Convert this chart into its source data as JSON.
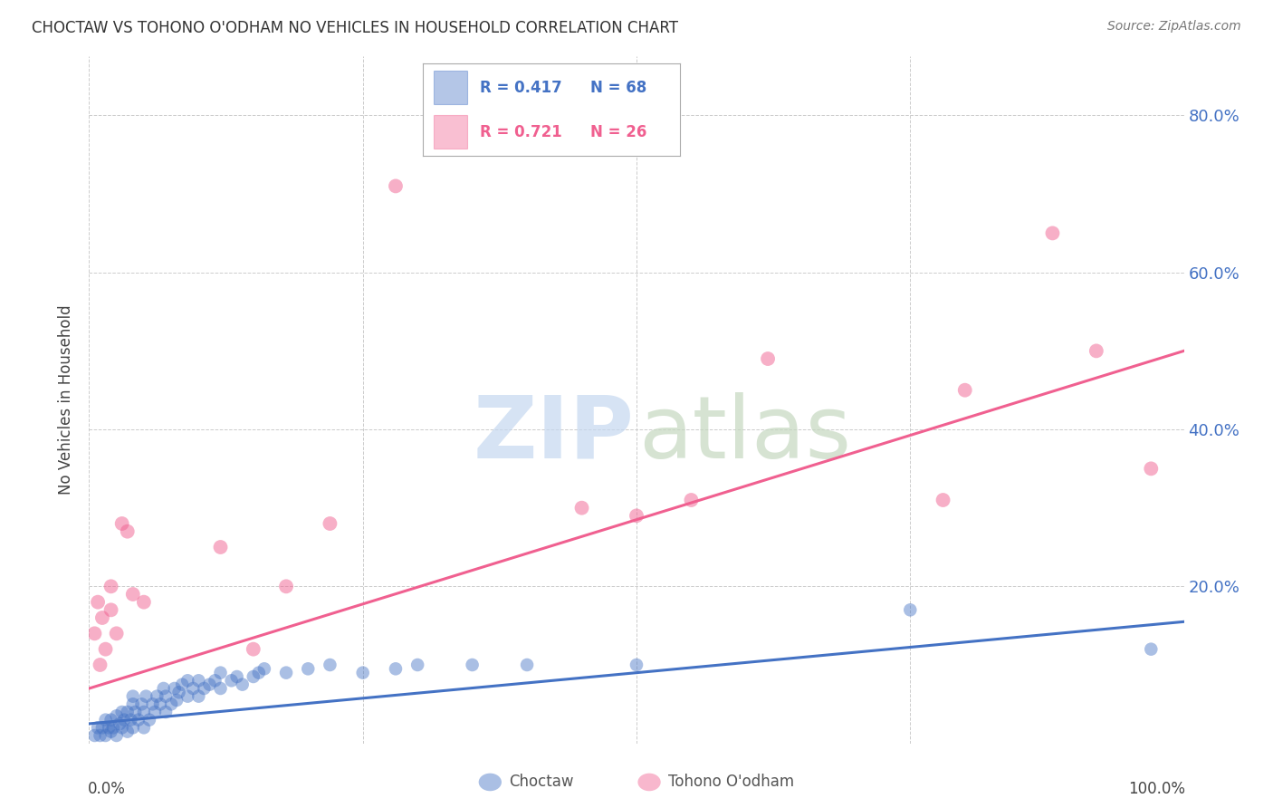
{
  "title": "CHOCTAW VS TOHONO O'ODHAM NO VEHICLES IN HOUSEHOLD CORRELATION CHART",
  "source": "Source: ZipAtlas.com",
  "ylabel": "No Vehicles in Household",
  "blue_color": "#4472c4",
  "pink_color": "#f06090",
  "bg_color": "#ffffff",
  "x_min": 0.0,
  "x_max": 1.0,
  "y_min": 0.0,
  "y_max": 0.875,
  "ytick_vals": [
    0.0,
    0.2,
    0.4,
    0.6,
    0.8
  ],
  "ytick_labels": [
    "",
    "20.0%",
    "40.0%",
    "60.0%",
    "80.0%"
  ],
  "blue_line_x": [
    0.0,
    1.0
  ],
  "blue_line_y": [
    0.025,
    0.155
  ],
  "pink_line_x": [
    0.0,
    1.0
  ],
  "pink_line_y": [
    0.07,
    0.5
  ],
  "choctaw_x": [
    0.005,
    0.008,
    0.01,
    0.012,
    0.015,
    0.015,
    0.018,
    0.02,
    0.02,
    0.022,
    0.025,
    0.025,
    0.028,
    0.03,
    0.03,
    0.032,
    0.035,
    0.035,
    0.038,
    0.04,
    0.04,
    0.04,
    0.042,
    0.045,
    0.048,
    0.05,
    0.05,
    0.052,
    0.055,
    0.058,
    0.06,
    0.062,
    0.065,
    0.068,
    0.07,
    0.07,
    0.075,
    0.078,
    0.08,
    0.082,
    0.085,
    0.09,
    0.09,
    0.095,
    0.1,
    0.1,
    0.105,
    0.11,
    0.115,
    0.12,
    0.12,
    0.13,
    0.135,
    0.14,
    0.15,
    0.155,
    0.16,
    0.18,
    0.2,
    0.22,
    0.25,
    0.28,
    0.3,
    0.35,
    0.4,
    0.5,
    0.75,
    0.97
  ],
  "choctaw_y": [
    0.01,
    0.02,
    0.01,
    0.02,
    0.01,
    0.03,
    0.02,
    0.015,
    0.03,
    0.02,
    0.01,
    0.035,
    0.025,
    0.02,
    0.04,
    0.03,
    0.015,
    0.04,
    0.03,
    0.02,
    0.05,
    0.06,
    0.04,
    0.03,
    0.05,
    0.02,
    0.04,
    0.06,
    0.03,
    0.05,
    0.04,
    0.06,
    0.05,
    0.07,
    0.04,
    0.06,
    0.05,
    0.07,
    0.055,
    0.065,
    0.075,
    0.06,
    0.08,
    0.07,
    0.06,
    0.08,
    0.07,
    0.075,
    0.08,
    0.07,
    0.09,
    0.08,
    0.085,
    0.075,
    0.085,
    0.09,
    0.095,
    0.09,
    0.095,
    0.1,
    0.09,
    0.095,
    0.1,
    0.1,
    0.1,
    0.1,
    0.17,
    0.12
  ],
  "tohono_x": [
    0.005,
    0.008,
    0.01,
    0.012,
    0.015,
    0.02,
    0.02,
    0.025,
    0.03,
    0.035,
    0.04,
    0.05,
    0.12,
    0.15,
    0.18,
    0.22,
    0.28,
    0.45,
    0.5,
    0.55,
    0.62,
    0.78,
    0.8,
    0.88,
    0.92,
    0.97
  ],
  "tohono_y": [
    0.14,
    0.18,
    0.1,
    0.16,
    0.12,
    0.2,
    0.17,
    0.14,
    0.28,
    0.27,
    0.19,
    0.18,
    0.25,
    0.12,
    0.2,
    0.28,
    0.71,
    0.3,
    0.29,
    0.31,
    0.49,
    0.31,
    0.45,
    0.65,
    0.5,
    0.35
  ]
}
